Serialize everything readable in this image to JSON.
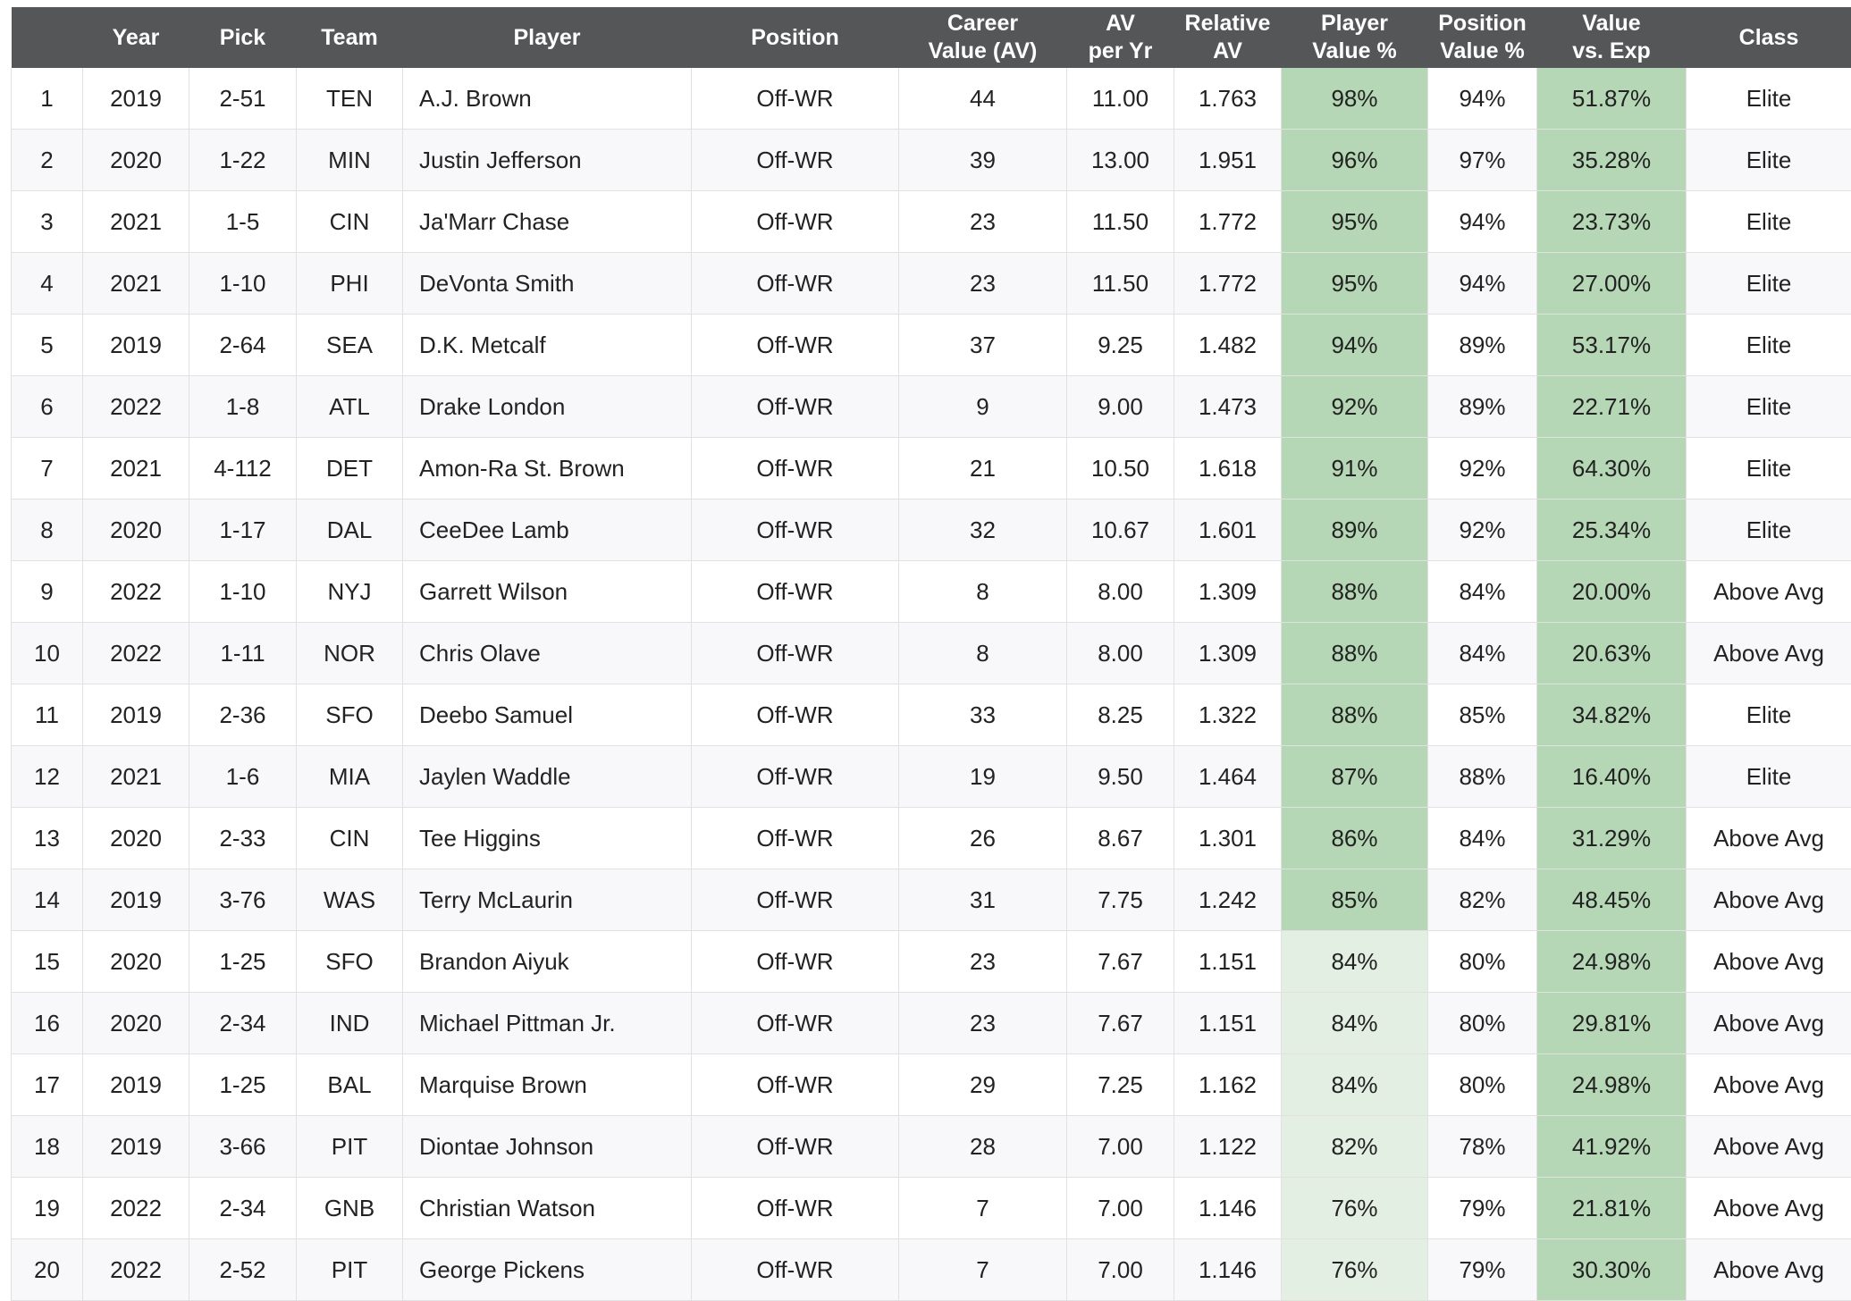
{
  "chart_data": {
    "type": "table",
    "columns": [
      "",
      "Year",
      "Pick",
      "Team",
      "Player",
      "Position",
      "Career\nValue (AV)",
      "AV\nper Yr",
      "Relative\nAV",
      "Player\nValue %",
      "Position\nValue %",
      "Value\nvs. Exp",
      "Class"
    ],
    "rows": [
      [
        "1",
        "2019",
        "2-51",
        "TEN",
        "A.J. Brown",
        "Off-WR",
        "44",
        "11.00",
        "1.763",
        "98%",
        "94%",
        "51.87%",
        "Elite"
      ],
      [
        "2",
        "2020",
        "1-22",
        "MIN",
        "Justin Jefferson",
        "Off-WR",
        "39",
        "13.00",
        "1.951",
        "96%",
        "97%",
        "35.28%",
        "Elite"
      ],
      [
        "3",
        "2021",
        "1-5",
        "CIN",
        "Ja'Marr Chase",
        "Off-WR",
        "23",
        "11.50",
        "1.772",
        "95%",
        "94%",
        "23.73%",
        "Elite"
      ],
      [
        "4",
        "2021",
        "1-10",
        "PHI",
        "DeVonta Smith",
        "Off-WR",
        "23",
        "11.50",
        "1.772",
        "95%",
        "94%",
        "27.00%",
        "Elite"
      ],
      [
        "5",
        "2019",
        "2-64",
        "SEA",
        "D.K. Metcalf",
        "Off-WR",
        "37",
        "9.25",
        "1.482",
        "94%",
        "89%",
        "53.17%",
        "Elite"
      ],
      [
        "6",
        "2022",
        "1-8",
        "ATL",
        "Drake London",
        "Off-WR",
        "9",
        "9.00",
        "1.473",
        "92%",
        "89%",
        "22.71%",
        "Elite"
      ],
      [
        "7",
        "2021",
        "4-112",
        "DET",
        "Amon-Ra St. Brown",
        "Off-WR",
        "21",
        "10.50",
        "1.618",
        "91%",
        "92%",
        "64.30%",
        "Elite"
      ],
      [
        "8",
        "2020",
        "1-17",
        "DAL",
        "CeeDee Lamb",
        "Off-WR",
        "32",
        "10.67",
        "1.601",
        "89%",
        "92%",
        "25.34%",
        "Elite"
      ],
      [
        "9",
        "2022",
        "1-10",
        "NYJ",
        "Garrett Wilson",
        "Off-WR",
        "8",
        "8.00",
        "1.309",
        "88%",
        "84%",
        "20.00%",
        "Above Avg"
      ],
      [
        "10",
        "2022",
        "1-11",
        "NOR",
        "Chris Olave",
        "Off-WR",
        "8",
        "8.00",
        "1.309",
        "88%",
        "84%",
        "20.63%",
        "Above Avg"
      ],
      [
        "11",
        "2019",
        "2-36",
        "SFO",
        "Deebo Samuel",
        "Off-WR",
        "33",
        "8.25",
        "1.322",
        "88%",
        "85%",
        "34.82%",
        "Elite"
      ],
      [
        "12",
        "2021",
        "1-6",
        "MIA",
        "Jaylen Waddle",
        "Off-WR",
        "19",
        "9.50",
        "1.464",
        "87%",
        "88%",
        "16.40%",
        "Elite"
      ],
      [
        "13",
        "2020",
        "2-33",
        "CIN",
        "Tee Higgins",
        "Off-WR",
        "26",
        "8.67",
        "1.301",
        "86%",
        "84%",
        "31.29%",
        "Above Avg"
      ],
      [
        "14",
        "2019",
        "3-76",
        "WAS",
        "Terry McLaurin",
        "Off-WR",
        "31",
        "7.75",
        "1.242",
        "85%",
        "82%",
        "48.45%",
        "Above Avg"
      ],
      [
        "15",
        "2020",
        "1-25",
        "SFO",
        "Brandon Aiyuk",
        "Off-WR",
        "23",
        "7.67",
        "1.151",
        "84%",
        "80%",
        "24.98%",
        "Above Avg"
      ],
      [
        "16",
        "2020",
        "2-34",
        "IND",
        "Michael Pittman Jr.",
        "Off-WR",
        "23",
        "7.67",
        "1.151",
        "84%",
        "80%",
        "29.81%",
        "Above Avg"
      ],
      [
        "17",
        "2019",
        "1-25",
        "BAL",
        "Marquise Brown",
        "Off-WR",
        "29",
        "7.25",
        "1.162",
        "84%",
        "80%",
        "24.98%",
        "Above Avg"
      ],
      [
        "18",
        "2019",
        "3-66",
        "PIT",
        "Diontae Johnson",
        "Off-WR",
        "28",
        "7.00",
        "1.122",
        "82%",
        "78%",
        "41.92%",
        "Above Avg"
      ],
      [
        "19",
        "2022",
        "2-34",
        "GNB",
        "Christian Watson",
        "Off-WR",
        "7",
        "7.00",
        "1.146",
        "76%",
        "79%",
        "21.81%",
        "Above Avg"
      ],
      [
        "20",
        "2022",
        "2-52",
        "PIT",
        "George Pickens",
        "Off-WR",
        "7",
        "7.00",
        "1.146",
        "76%",
        "79%",
        "30.30%",
        "Above Avg"
      ]
    ]
  },
  "colors": {
    "header_bg": "#545658",
    "header_text": "#ffffff",
    "highlight_strong": "#b6d7b6",
    "highlight_light": "#e3efe3",
    "zebra": "#f8f8fa",
    "grid_line": "#e1e1e1"
  }
}
